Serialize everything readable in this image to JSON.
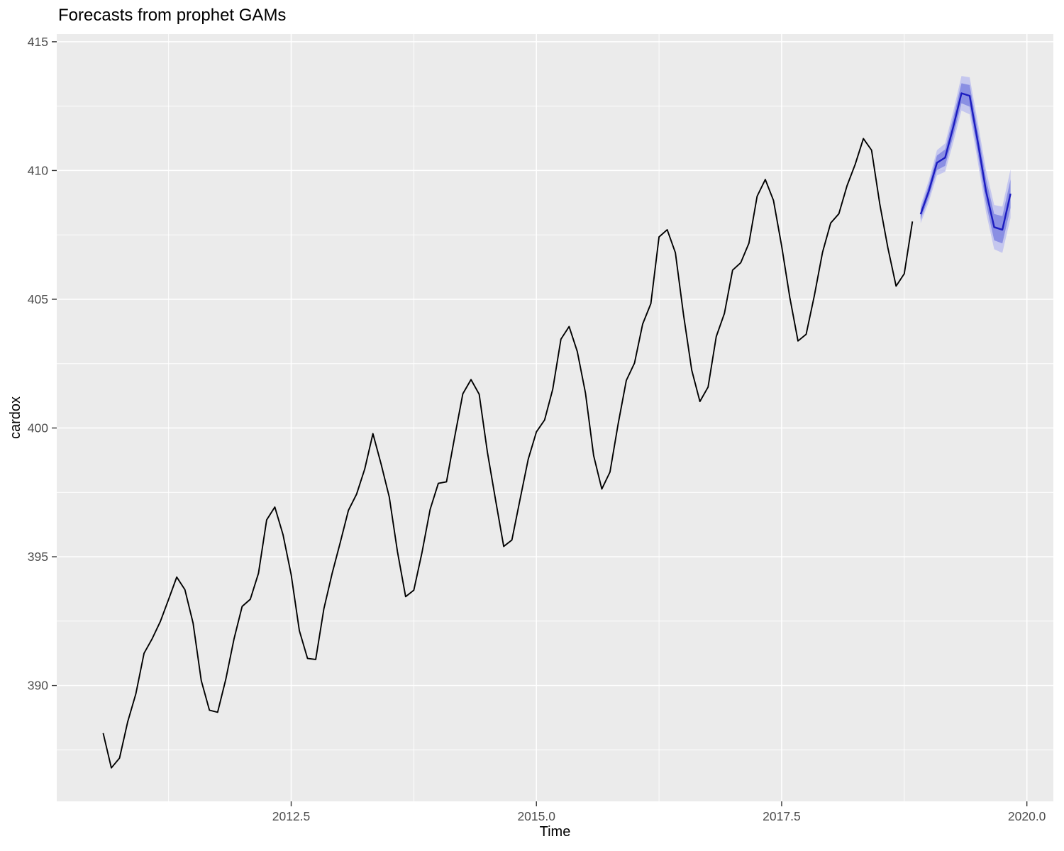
{
  "chart_data": {
    "type": "line",
    "title": "Forecasts from prophet GAMs",
    "xlabel": "Time",
    "ylabel": "cardox",
    "xlim": [
      2010.11,
      2020.27
    ],
    "ylim": [
      385.5,
      415.3
    ],
    "grid": true,
    "legend": "none",
    "x_major_ticks": [
      2012.5,
      2015.0,
      2017.5,
      2020.0
    ],
    "x_tick_labels": [
      "2012.5",
      "2015.0",
      "2017.5",
      "2020.0"
    ],
    "x_minor_ticks": [
      2011.25,
      2013.75,
      2016.25,
      2018.75
    ],
    "y_major_ticks": [
      390,
      395,
      400,
      405,
      410,
      415
    ],
    "y_tick_labels": [
      "390",
      "395",
      "400",
      "405",
      "410",
      "415"
    ],
    "y_minor_ticks": [
      387.5,
      392.5,
      397.5,
      402.5,
      407.5,
      412.5
    ],
    "colors": {
      "panel_bg": "#EBEBEB",
      "grid": "#FFFFFF",
      "tick_mark": "#333333",
      "tick_text": "#4D4D4D",
      "observed_line": "#000000",
      "forecast_line": "#1C1CC0",
      "ribbon_80": "#8A8FE3",
      "ribbon_95": "#C5C7EE"
    },
    "series": [
      {
        "name": "observed",
        "start": 2010.5833,
        "step": 0.0833333,
        "values": [
          388.15,
          386.8,
          387.18,
          388.59,
          389.68,
          391.25,
          391.82,
          392.49,
          393.34,
          394.21,
          393.72,
          392.42,
          390.19,
          389.04,
          388.96,
          390.24,
          391.8,
          393.07,
          393.35,
          394.36,
          396.43,
          396.93,
          395.86,
          394.3,
          392.13,
          391.05,
          391.01,
          392.98,
          394.34,
          395.55,
          396.8,
          397.43,
          398.41,
          399.78,
          398.6,
          397.32,
          395.2,
          393.45,
          393.7,
          395.16,
          396.84,
          397.85,
          397.91,
          399.65,
          401.33,
          401.88,
          401.31,
          399.07,
          397.21,
          395.4,
          395.65,
          397.23,
          398.79,
          399.85,
          400.31,
          401.51,
          403.45,
          403.94,
          402.97,
          401.36,
          398.93,
          397.63,
          398.29,
          400.16,
          401.85,
          402.52,
          404.04,
          404.83,
          407.42,
          407.7,
          406.81,
          404.39,
          402.25,
          401.03,
          401.59,
          403.55,
          404.45,
          406.13,
          406.42,
          407.18,
          409.0,
          409.65,
          408.84,
          407.07,
          405.07,
          403.38,
          403.64,
          405.14,
          406.82,
          407.96,
          408.32,
          409.41,
          410.24,
          411.24,
          410.79,
          408.71,
          406.99,
          405.51,
          405.99,
          408.02
        ]
      },
      {
        "name": "forecast-mean",
        "start": 2018.9167,
        "step": 0.0833333,
        "values": [
          408.3,
          409.2,
          410.3,
          410.5,
          411.7,
          413.0,
          412.9,
          411.1,
          409.2,
          407.8,
          407.7,
          409.1
        ]
      }
    ],
    "intervals": [
      {
        "name": "95%",
        "start": 2018.9167,
        "step": 0.0833333,
        "lower": [
          407.95,
          408.78,
          409.81,
          409.95,
          411.09,
          412.33,
          412.18,
          410.33,
          408.38,
          406.94,
          406.8,
          408.16
        ],
        "upper": [
          408.65,
          409.62,
          410.79,
          411.05,
          412.31,
          413.67,
          413.62,
          411.87,
          410.02,
          408.66,
          408.6,
          410.04
        ]
      },
      {
        "name": "80%",
        "start": 2018.9167,
        "step": 0.0833333,
        "lower": [
          408.1,
          408.96,
          410.02,
          410.18,
          411.34,
          412.61,
          412.48,
          410.65,
          408.72,
          407.29,
          407.17,
          408.55
        ],
        "upper": [
          408.5,
          409.44,
          410.58,
          410.82,
          412.06,
          413.39,
          413.32,
          411.55,
          409.68,
          408.31,
          408.23,
          409.65
        ]
      }
    ]
  }
}
